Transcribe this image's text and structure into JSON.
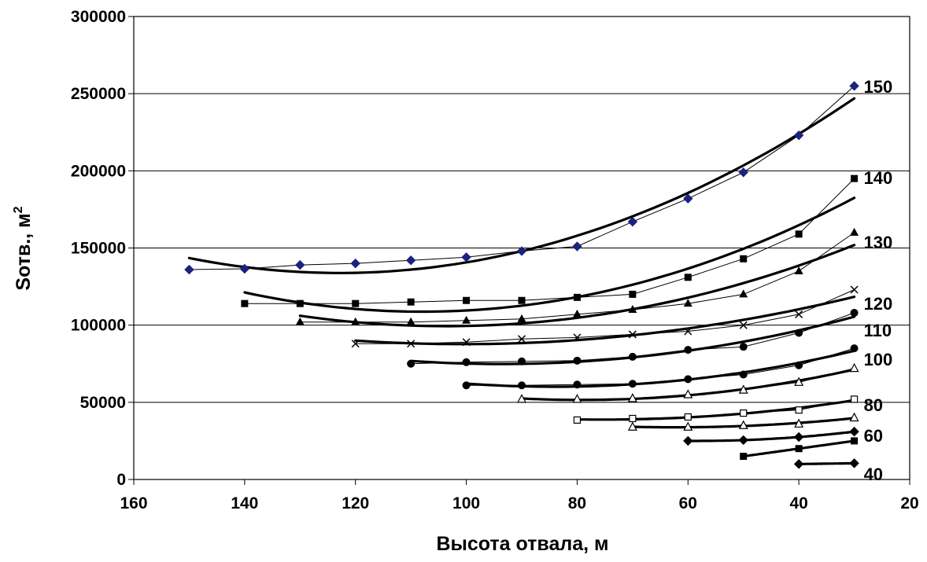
{
  "chart_data": {
    "type": "line",
    "xlabel": "Высота отвала, м",
    "ylabel": "Sотв., м",
    "ylabel_superscript": "2",
    "xlim": [
      160,
      20
    ],
    "ylim": [
      0,
      300000
    ],
    "x_reversed": true,
    "x_ticks": [
      160,
      140,
      120,
      100,
      80,
      60,
      40,
      20
    ],
    "y_ticks": [
      0,
      50000,
      100000,
      150000,
      200000,
      250000,
      300000
    ],
    "grid": "horizontal",
    "legend": "none",
    "series_labels_position": "right-end",
    "series": [
      {
        "name": "150",
        "marker": "diamond",
        "marker_color": "#1a237e",
        "x": [
          150,
          140,
          130,
          120,
          110,
          100,
          90,
          80,
          70,
          60,
          50,
          40,
          30
        ],
        "y": [
          136000,
          136500,
          139000,
          140000,
          142000,
          144000,
          148000,
          151000,
          167000,
          182000,
          199000,
          223000,
          255000
        ]
      },
      {
        "name": "140",
        "marker": "square",
        "x": [
          140,
          130,
          120,
          110,
          100,
          90,
          80,
          70,
          60,
          50,
          40,
          30
        ],
        "y": [
          114000,
          114000,
          114000,
          115000,
          116000,
          116000,
          118000,
          120000,
          131000,
          143000,
          159000,
          195000
        ]
      },
      {
        "name": "130",
        "marker": "triangle",
        "x": [
          130,
          120,
          110,
          100,
          90,
          80,
          70,
          60,
          50,
          40,
          30
        ],
        "y": [
          102000,
          102000,
          102000,
          103000,
          104000,
          107000,
          110000,
          114000,
          120000,
          135000,
          160000
        ]
      },
      {
        "name": "120",
        "marker": "x",
        "x": [
          120,
          110,
          100,
          90,
          80,
          70,
          60,
          50,
          40,
          30
        ],
        "y": [
          88000,
          88000,
          89000,
          91000,
          92000,
          94000,
          96000,
          100000,
          107000,
          123000
        ]
      },
      {
        "name": "110",
        "marker": "circle",
        "x": [
          110,
          100,
          90,
          80,
          70,
          60,
          50,
          40,
          30
        ],
        "y": [
          75000,
          76000,
          76500,
          77000,
          79500,
          84000,
          86000,
          95000,
          108000
        ]
      },
      {
        "name": "100",
        "marker": "circle",
        "x": [
          100,
          90,
          80,
          70,
          60,
          50,
          40,
          30
        ],
        "y": [
          61000,
          61000,
          61500,
          62000,
          65000,
          68000,
          74000,
          85000
        ]
      },
      {
        "name": "",
        "marker": "open-triangle",
        "x": [
          90,
          80,
          70,
          60,
          50,
          40,
          30
        ],
        "y": [
          52000,
          52000,
          52500,
          55000,
          58000,
          63000,
          72000
        ]
      },
      {
        "name": "80",
        "marker": "open-square",
        "x": [
          80,
          70,
          60,
          50,
          40,
          30
        ],
        "y": [
          38500,
          39500,
          40500,
          43000,
          45000,
          52000
        ]
      },
      {
        "name": "",
        "marker": "open-triangle",
        "x": [
          70,
          60,
          50,
          40,
          30
        ],
        "y": [
          34000,
          34000,
          35000,
          36000,
          40000
        ]
      },
      {
        "name": "60",
        "marker": "diamond",
        "marker_color": "#000000",
        "x": [
          60,
          50,
          40,
          30
        ],
        "y": [
          25000,
          25500,
          27500,
          31000
        ]
      },
      {
        "name": "",
        "marker": "square",
        "x": [
          50,
          40,
          30
        ],
        "y": [
          15000,
          20000,
          25000
        ]
      },
      {
        "name": "40",
        "marker": "diamond",
        "marker_color": "#000000",
        "x": [
          40,
          30
        ],
        "y": [
          10000,
          10500
        ]
      }
    ]
  }
}
